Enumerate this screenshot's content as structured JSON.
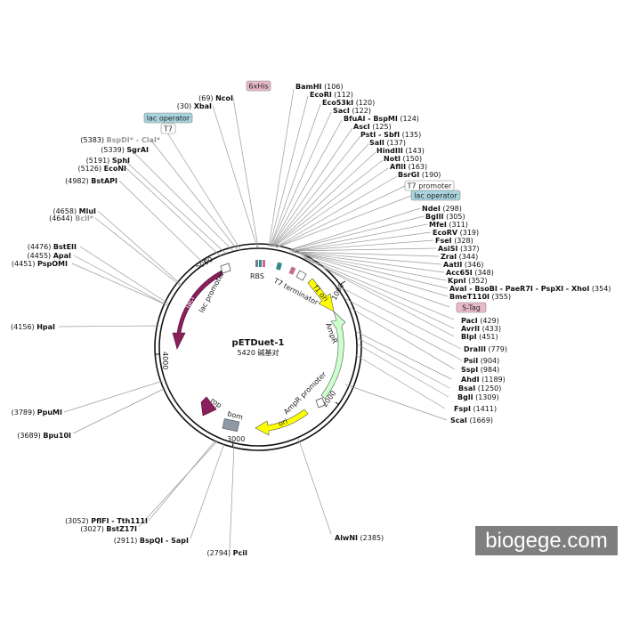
{
  "plasmid": {
    "name": "pETDuet-1",
    "size": "5420 碱基对",
    "length": 5420
  },
  "ticks": [
    "1000",
    "2000",
    "3000",
    "4000",
    "5000"
  ],
  "sites": [
    {
      "id": "ncoi",
      "pos": "(69)",
      "name": "NcoI",
      "dim": false
    },
    {
      "id": "xbai",
      "pos": "(30)",
      "name": "XbaI",
      "dim": false
    },
    {
      "id": "bspdi",
      "pos": "(5383)",
      "name": "BspDI* - ClaI*",
      "dim": true
    },
    {
      "id": "sgrai",
      "pos": "(5339)",
      "name": "SgrAI",
      "dim": false
    },
    {
      "id": "sphi",
      "pos": "(5191)",
      "name": "SphI",
      "dim": false
    },
    {
      "id": "econi",
      "pos": "(5126)",
      "name": "EcoNI",
      "dim": false
    },
    {
      "id": "bstapi",
      "pos": "(4982)",
      "name": "BstAPI",
      "dim": false
    },
    {
      "id": "mlui",
      "pos": "(4658)",
      "name": "MluI",
      "dim": false
    },
    {
      "id": "bcli",
      "pos": "(4644)",
      "name": "BclI*",
      "dim": true
    },
    {
      "id": "bsteii",
      "pos": "(4476)",
      "name": "BstEII",
      "dim": false
    },
    {
      "id": "apai",
      "pos": "(4455)",
      "name": "ApaI",
      "dim": false
    },
    {
      "id": "pspomi",
      "pos": "(4451)",
      "name": "PspOMI",
      "dim": false
    },
    {
      "id": "hpai",
      "pos": "(4156)",
      "name": "HpaI",
      "dim": false
    },
    {
      "id": "ppumi",
      "pos": "(3789)",
      "name": "PpuMI",
      "dim": false
    },
    {
      "id": "bpu10i",
      "pos": "(3689)",
      "name": "Bpu10I",
      "dim": false
    },
    {
      "id": "pflfi",
      "pos": "(3052)",
      "name": "PflFI - Tth111I",
      "dim": false
    },
    {
      "id": "bstz17i",
      "pos": "(3027)",
      "name": "BstZ17I",
      "dim": false
    },
    {
      "id": "bspqi",
      "pos": "(2911)",
      "name": "BspQI - SapI",
      "dim": false
    },
    {
      "id": "pcii",
      "pos": "(2794)",
      "name": "PciI",
      "dim": false
    },
    {
      "id": "bamhi",
      "name": "BamHI",
      "pos": "(106)",
      "dim": false
    },
    {
      "id": "ecori",
      "name": "EcoRI",
      "pos": "(112)",
      "dim": false
    },
    {
      "id": "eco53ki",
      "name": "Eco53kI",
      "pos": "(120)",
      "dim": false
    },
    {
      "id": "saci",
      "name": "SacI",
      "pos": "(122)",
      "dim": false
    },
    {
      "id": "bfuai",
      "name": "BfuAI - BspMI",
      "pos": "(124)",
      "dim": false
    },
    {
      "id": "asci",
      "name": "AscI",
      "pos": "(125)",
      "dim": false
    },
    {
      "id": "psti",
      "name": "PstI - SbfI",
      "pos": "(135)",
      "dim": false
    },
    {
      "id": "sali",
      "name": "SalI",
      "pos": "(137)",
      "dim": false
    },
    {
      "id": "hindiii",
      "name": "HindIII",
      "pos": "(143)",
      "dim": false
    },
    {
      "id": "noti",
      "name": "NotI",
      "pos": "(150)",
      "dim": false
    },
    {
      "id": "aflii",
      "name": "AflII",
      "pos": "(163)",
      "dim": false
    },
    {
      "id": "bsrgi",
      "name": "BsrGI",
      "pos": "(190)",
      "dim": false
    },
    {
      "id": "ndei",
      "name": "NdeI",
      "pos": "(298)",
      "dim": false
    },
    {
      "id": "bglii",
      "name": "BglII",
      "pos": "(305)",
      "dim": false
    },
    {
      "id": "mfei",
      "name": "MfeI",
      "pos": "(311)",
      "dim": false
    },
    {
      "id": "ecorv",
      "name": "EcoRV",
      "pos": "(319)",
      "dim": false
    },
    {
      "id": "fsei",
      "name": "FseI",
      "pos": "(328)",
      "dim": false
    },
    {
      "id": "asisi",
      "name": "AsiSI",
      "pos": "(337)",
      "dim": false
    },
    {
      "id": "zrai",
      "name": "ZraI",
      "pos": "(344)",
      "dim": false
    },
    {
      "id": "aatii",
      "name": "AatII",
      "pos": "(346)",
      "dim": false
    },
    {
      "id": "acc65i",
      "name": "Acc65I",
      "pos": "(348)",
      "dim": false
    },
    {
      "id": "kpni",
      "name": "KpnI",
      "pos": "(352)",
      "dim": false
    },
    {
      "id": "avai",
      "name": "AvaI - BsoBI - PaeR7I - PspXI - XhoI",
      "pos": "(354)",
      "dim": false
    },
    {
      "id": "bmet110i",
      "name": "BmeT110I",
      "pos": "(355)",
      "dim": false
    },
    {
      "id": "paci",
      "name": "PacI",
      "pos": "(429)",
      "dim": false
    },
    {
      "id": "avrii",
      "name": "AvrII",
      "pos": "(433)",
      "dim": false
    },
    {
      "id": "blpi",
      "name": "BlpI",
      "pos": "(451)",
      "dim": false
    },
    {
      "id": "draiii",
      "name": "DraIII",
      "pos": "(779)",
      "dim": false
    },
    {
      "id": "psii",
      "name": "PsiI",
      "pos": "(904)",
      "dim": false
    },
    {
      "id": "sspi",
      "name": "SspI",
      "pos": "(984)",
      "dim": false
    },
    {
      "id": "ahdi",
      "name": "AhdI",
      "pos": "(1189)",
      "dim": false
    },
    {
      "id": "bsai",
      "name": "BsaI",
      "pos": "(1250)",
      "dim": false
    },
    {
      "id": "bgli",
      "name": "BglI",
      "pos": "(1309)",
      "dim": false
    },
    {
      "id": "fspi",
      "name": "FspI",
      "pos": "(1411)",
      "dim": false
    },
    {
      "id": "scai",
      "name": "ScaI",
      "pos": "(1669)",
      "dim": false
    },
    {
      "id": "alwni",
      "name": "AlwNI",
      "pos": "(2385)",
      "dim": false
    }
  ],
  "tags": {
    "sixhis": "6xHis",
    "lac_op_top": "lac operator",
    "t7_top": "T7",
    "t7_promoter": "T7 promoter",
    "lac_op_right": "lac operator",
    "stag": "S-Tag"
  },
  "features": {
    "laci": "lacI",
    "lac_promoter": "lac promoter",
    "rbs": "RBS",
    "t7_terminator": "T7 terminator",
    "f1_ori": "f1 ori",
    "ampr": "AmpR",
    "ampr_promoter": "AmpR promoter",
    "ori": "ori",
    "rop": "rop",
    "bom": "bom"
  },
  "colors": {
    "laci": "#8b1f5c",
    "f1_ori": "#ffff00",
    "ampr": "#ccffcc",
    "ori": "#ffff00",
    "rop": "#8b1f5c",
    "bom": "#8e99a6",
    "tag_pink": "#e7b9c9",
    "tag_blue": "#a9d3de"
  },
  "watermark": "biogege.com"
}
